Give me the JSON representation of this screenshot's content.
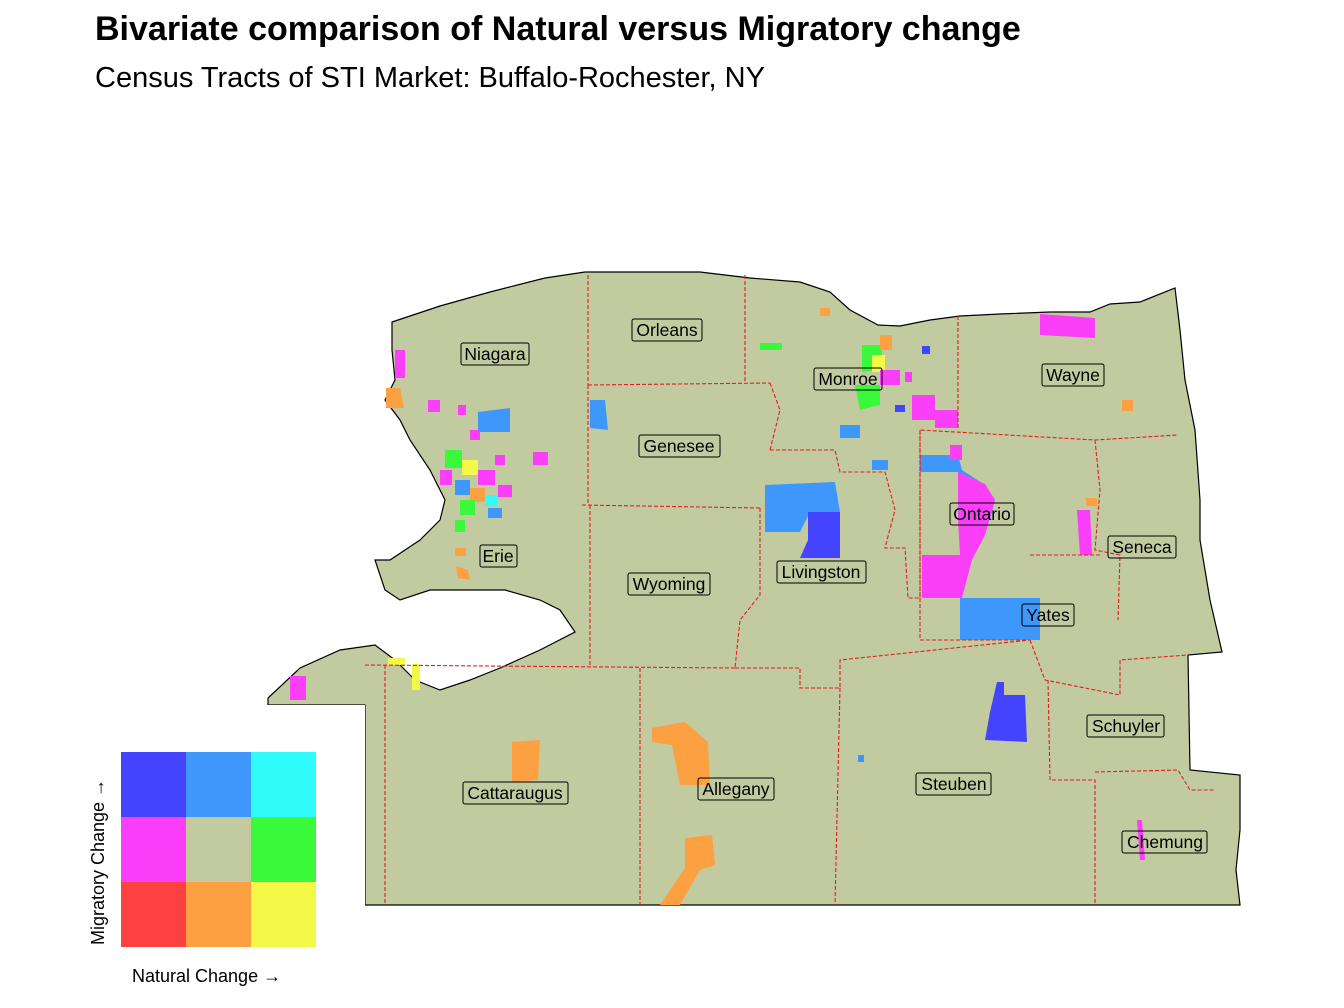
{
  "title": "Bivariate comparison of Natural versus Migratory change",
  "subtitle": "Census Tracts of STI Market: Buffalo-Rochester, NY",
  "colors": {
    "background": "#c2ca9f",
    "county_border": "#e02020",
    "outline": "#000000"
  },
  "counties": [
    {
      "name": "Niagara"
    },
    {
      "name": "Orleans"
    },
    {
      "name": "Monroe"
    },
    {
      "name": "Wayne"
    },
    {
      "name": "Genesee"
    },
    {
      "name": "Erie"
    },
    {
      "name": "Wyoming"
    },
    {
      "name": "Livingston"
    },
    {
      "name": "Ontario"
    },
    {
      "name": "Seneca"
    },
    {
      "name": "Yates"
    },
    {
      "name": "Schuyler"
    },
    {
      "name": "Cattaraugus"
    },
    {
      "name": "Allegany"
    },
    {
      "name": "Steuben"
    },
    {
      "name": "Chemung"
    }
  ],
  "legend": {
    "x_title": "Natural Change →",
    "y_title": "Migratory Change →",
    "grid": [
      [
        "#4444ff",
        "#3e97fb",
        "#2ffbfb"
      ],
      [
        "#fb3ef9",
        "#c2ca9f",
        "#39f93a"
      ],
      [
        "#fd4040",
        "#fca042",
        "#f4f947"
      ]
    ]
  }
}
